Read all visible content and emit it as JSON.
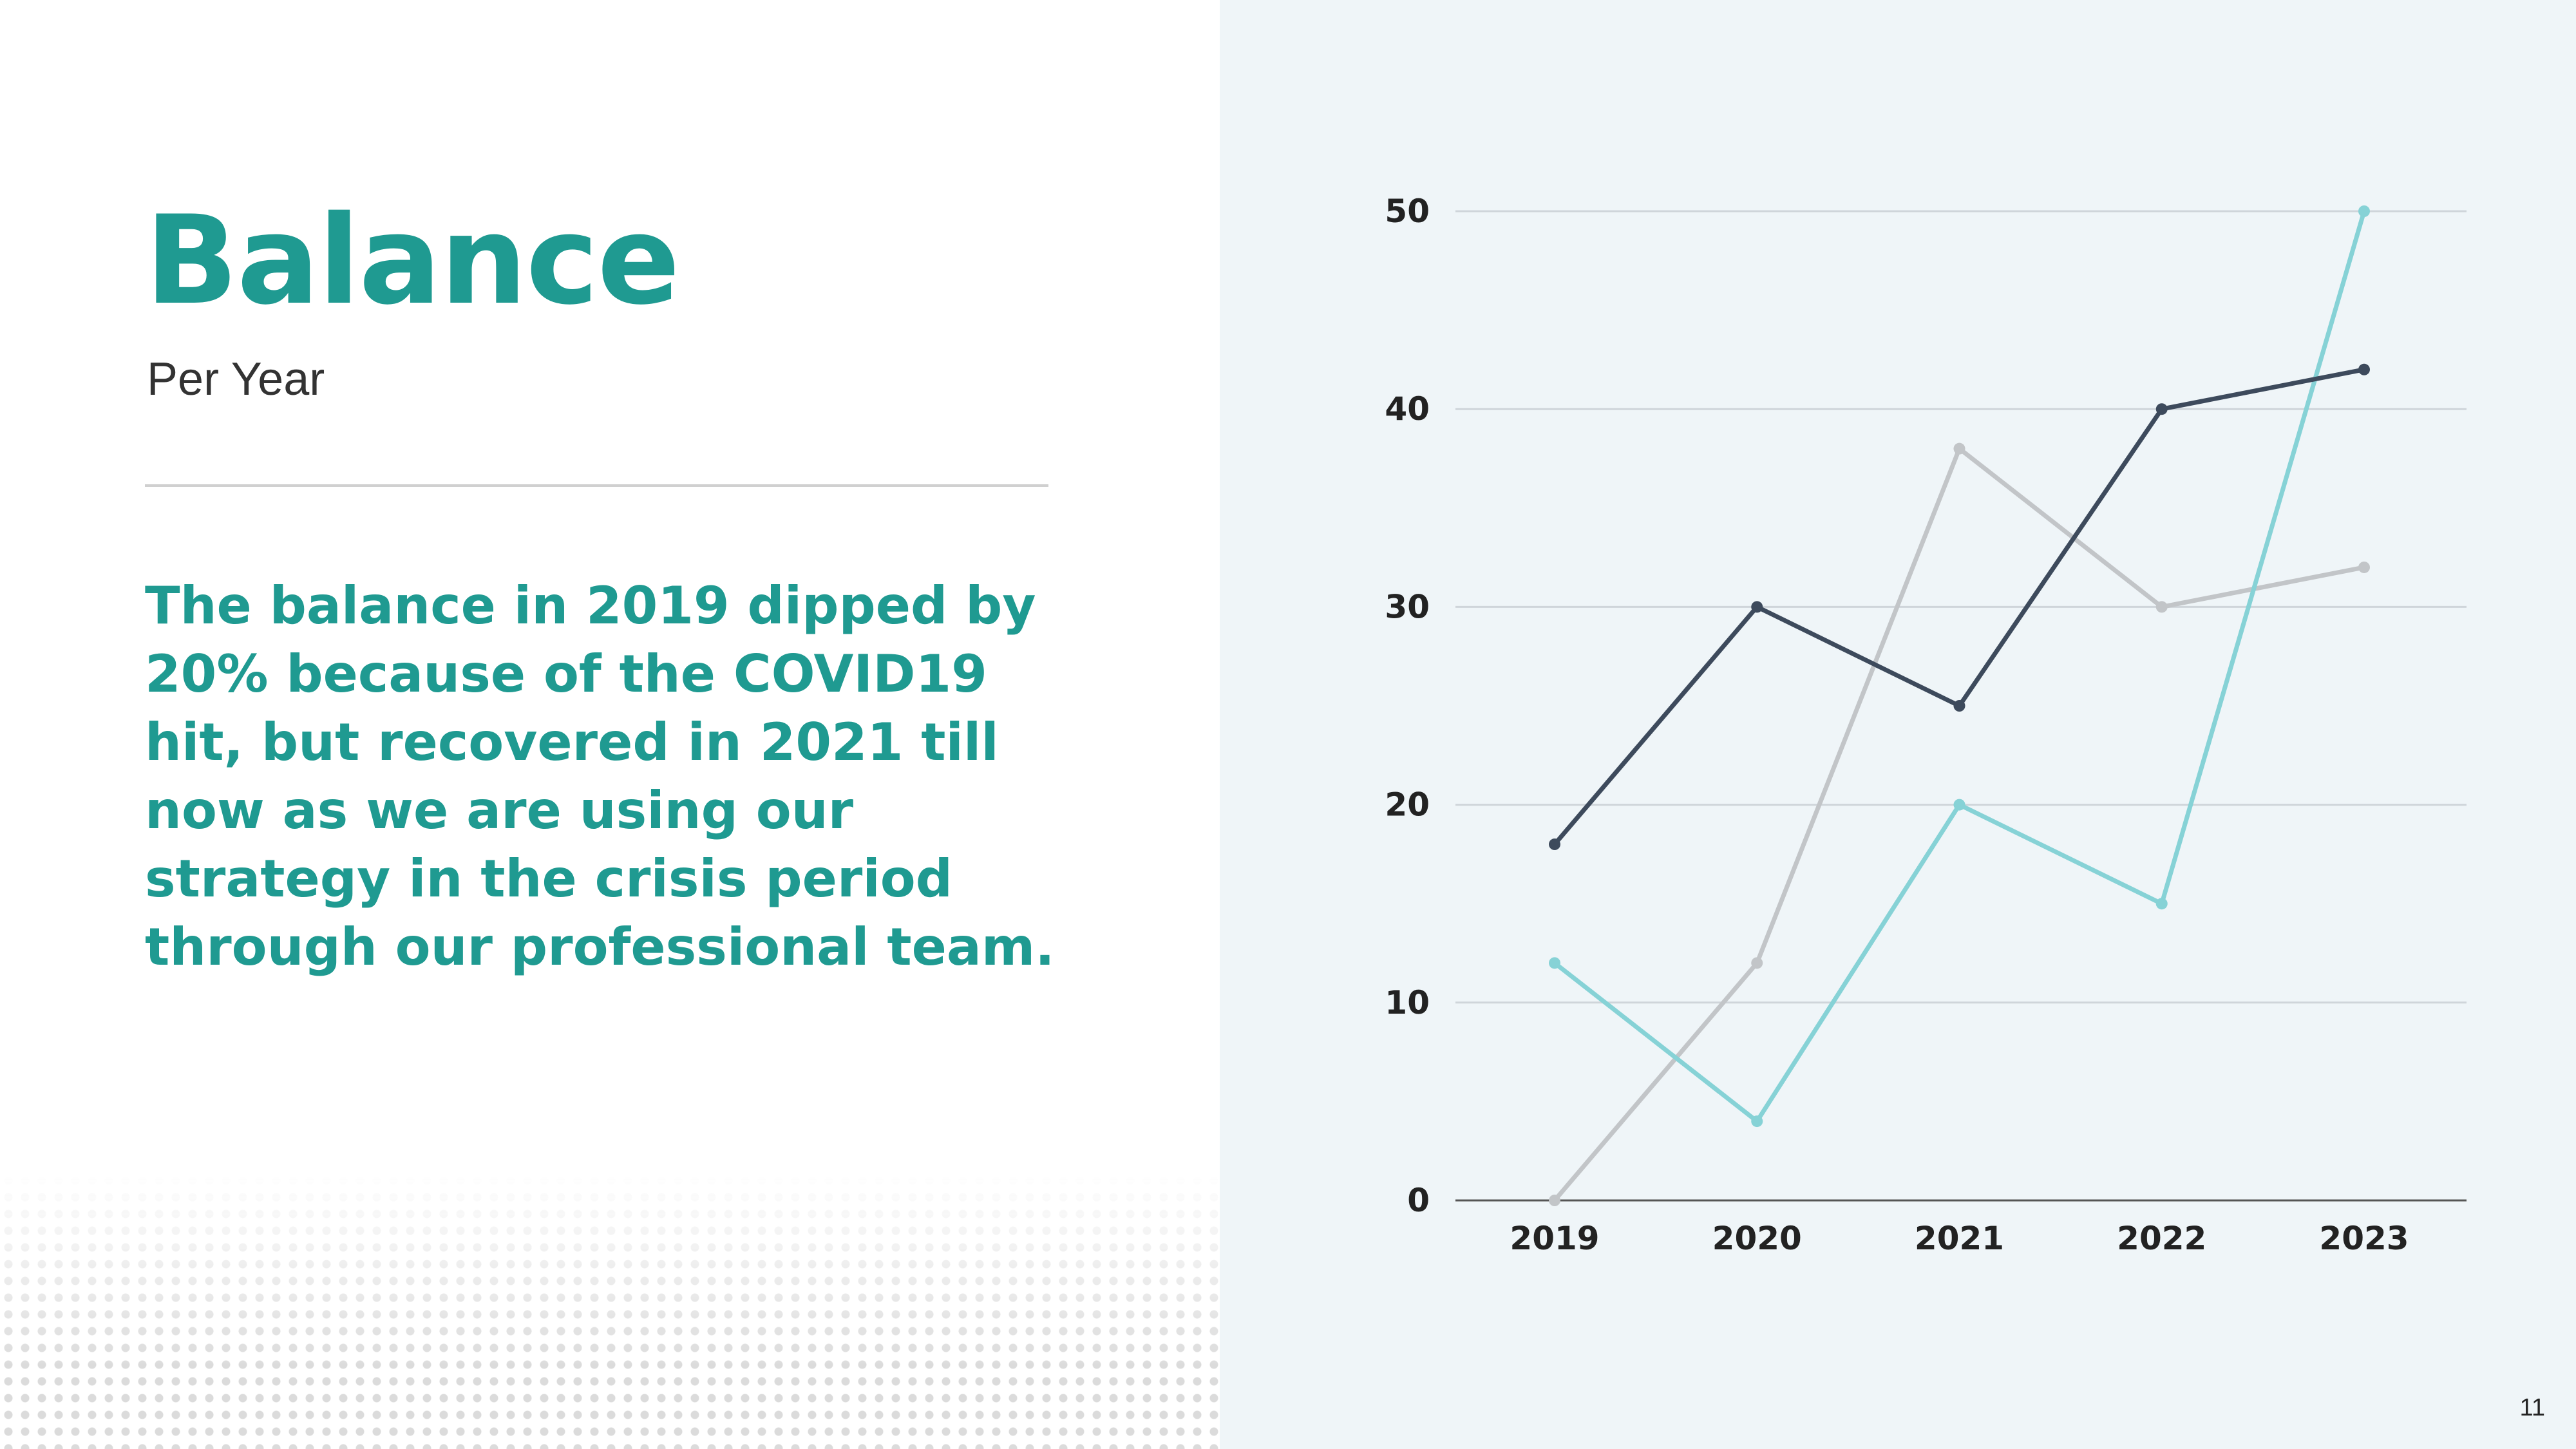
{
  "slide": {
    "title": "Balance",
    "subtitle": "Per Year",
    "body": "The balance in 2019 dipped by 20% because of the COVID19 hit, but recovered in 2021 till now as we are using our  strategy in the crisis period through our professional team.",
    "page_number": "11"
  },
  "chart_data": {
    "type": "line",
    "x": [
      "2019",
      "2020",
      "2021",
      "2022",
      "2023"
    ],
    "ylim": [
      0,
      50
    ],
    "yticks": [
      0,
      10,
      20,
      30,
      40,
      50
    ],
    "grid": true,
    "legend": "none",
    "series": [
      {
        "color": "#3d4a5c",
        "values": [
          18,
          30,
          25,
          40,
          42
        ]
      },
      {
        "color": "#c2c5c8",
        "values": [
          0,
          12,
          38,
          30,
          32
        ]
      },
      {
        "color": "#86d2d6",
        "values": [
          12,
          4,
          20,
          15,
          50
        ]
      }
    ]
  }
}
